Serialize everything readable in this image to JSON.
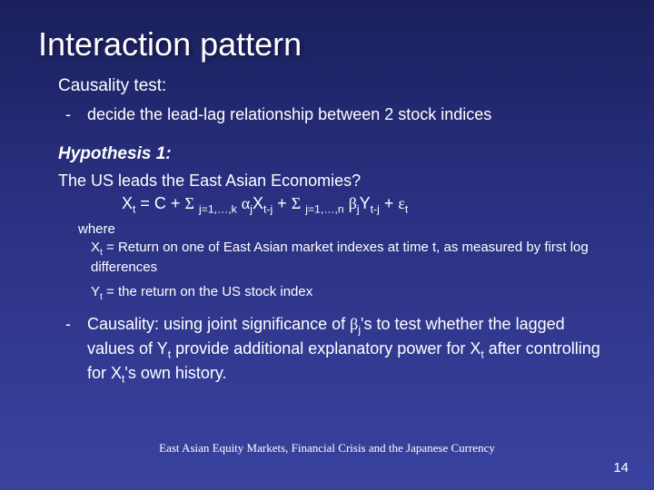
{
  "title": "Interaction pattern",
  "causality_label": "Causality test:",
  "decide_line": "decide the lead-lag relationship between 2 stock indices",
  "hypothesis_label": "Hypothesis 1:",
  "question": "The US leads the East Asian Economies?",
  "formula": "Xt = C + Σ j=1,…,k αjXt-j + Σ j=1,…,n βjYt-j + εt",
  "where_label": "where",
  "xt_def": "Xt = Return on one of East Asian market indexes at time t, as measured by first log differences",
  "yt_def": "Yt = the return on the US stock index",
  "causality_text": "Causality: using joint significance of βj's to test whether the lagged values of Yt provide additional explanatory power for Xt after controlling for Xt's own history.",
  "footer_text": "East Asian Equity Markets, Financial Crisis and the Japanese Currency",
  "page_number": "14",
  "colors": {
    "bg_top": "#1a1f5c",
    "bg_bottom": "#3a42a0",
    "text": "#ffffff"
  },
  "typography": {
    "title_fontsize": 36,
    "body_fontsize": 18,
    "sub_fontsize": 15,
    "footer_fontsize": 13
  }
}
